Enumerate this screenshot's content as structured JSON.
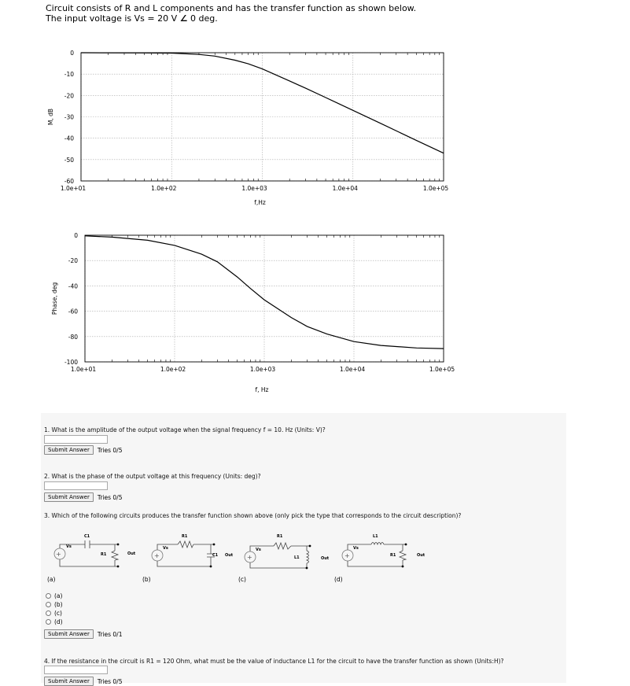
{
  "intro": {
    "line1": "Circuit consists of R and L components and has the transfer function as shown below.",
    "line2_pre": "The input voltage is Vs = 20 V ",
    "angle_symbol": "∠",
    "line2_post": " 0 deg."
  },
  "chart_data": [
    {
      "type": "line",
      "xlabel": "f,Hz",
      "ylabel": "M, dB",
      "xscale": "log",
      "xlim": [
        10,
        100000
      ],
      "ylim": [
        -60,
        0
      ],
      "y_ticks": [
        "0",
        "-10",
        "-20",
        "-30",
        "-40",
        "-50",
        "-60"
      ],
      "x_ticks": [
        "1.0e+01",
        "1.0e+02",
        "1.0e+03",
        "1.0e+04",
        "1.0e+05"
      ],
      "grid": true,
      "series": [
        {
          "x": [
            10,
            50,
            100,
            200,
            300,
            500,
            700,
            1000,
            2000,
            3000,
            5000,
            10000,
            20000,
            50000,
            100000
          ],
          "values": [
            0,
            -0.1,
            -0.2,
            -0.8,
            -1.6,
            -3.5,
            -5.2,
            -7.6,
            -13.2,
            -16.6,
            -21,
            -27,
            -33,
            -41,
            -47
          ]
        }
      ]
    },
    {
      "type": "line",
      "xlabel": "f, Hz",
      "ylabel": "Phase, deg",
      "xscale": "log",
      "xlim": [
        10,
        100000
      ],
      "ylim": [
        -100,
        0
      ],
      "y_ticks": [
        "0",
        "-20",
        "-40",
        "-60",
        "-80",
        "-100"
      ],
      "x_ticks": [
        "1.0e+01",
        "1.0e+02",
        "1.0e+03",
        "1.0e+04",
        "1.0e+05"
      ],
      "grid": true,
      "series": [
        {
          "x": [
            10,
            20,
            50,
            100,
            200,
            300,
            500,
            700,
            1000,
            2000,
            3000,
            5000,
            10000,
            20000,
            50000,
            100000
          ],
          "values": [
            -0.5,
            -1.5,
            -4,
            -8,
            -15,
            -21,
            -33,
            -42,
            -51,
            -65,
            -72,
            -78,
            -84,
            -87,
            -89,
            -89.5
          ]
        }
      ]
    }
  ],
  "q1": {
    "text": "1. What is the amplitude of the output voltage when the signal frequency f = 10. Hz (Units: V)?",
    "submit": "Submit Answer",
    "tries": "Tries 0/5"
  },
  "q2": {
    "text": "2. What is the phase of the output voltage at this frequency (Units: deg)?",
    "submit": "Submit Answer",
    "tries": "Tries 0/5"
  },
  "q3": {
    "text": "3. Which of the following circuits produces the transfer function shown above (only pick the type that corresponds to the circuit description)?",
    "circuits": [
      {
        "label": "(a)",
        "vs": "Vs",
        "top": "C1",
        "shunt": "R1",
        "out": "Out"
      },
      {
        "label": "(b)",
        "vs": "Vs",
        "top": "R1",
        "shunt": "C1",
        "out": "Out"
      },
      {
        "label": "(c)",
        "vs": "Vs",
        "top": "R1",
        "shunt": "L1",
        "out": "Out"
      },
      {
        "label": "(d)",
        "vs": "Vs",
        "top": "L1",
        "shunt": "R1",
        "out": "Out"
      }
    ],
    "options": [
      "(a)",
      "(b)",
      "(c)",
      "(d)"
    ],
    "submit": "Submit Answer",
    "tries": "Tries 0/1"
  },
  "q4": {
    "text": "4. If the resistance in the circuit is R1 = 120 Ohm, what must be the value of inductance L1 for the circuit to have the transfer function as shown (Units:H)?",
    "submit": "Submit Answer",
    "tries": "Tries 0/5"
  }
}
